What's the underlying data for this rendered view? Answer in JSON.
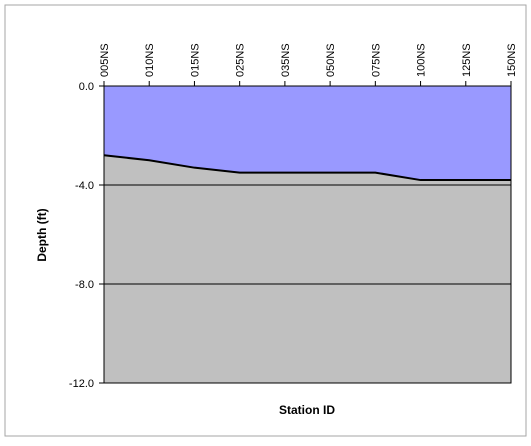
{
  "chart_data": {
    "type": "area",
    "title": "",
    "xlabel": "Station ID",
    "ylabel": "Depth (ft)",
    "categories": [
      "005NS",
      "010NS",
      "015NS",
      "025NS",
      "035NS",
      "050NS",
      "075NS",
      "100NS",
      "125NS",
      "150NS"
    ],
    "x_tick_labels": [
      "005NS",
      "010NS",
      "015NS",
      "025NS",
      "035NS",
      "050NS",
      "075NS",
      "100NS",
      "125NS",
      "150NS"
    ],
    "y_tick_labels": [
      "0.0",
      "-4.0",
      "-8.0",
      "-12.0"
    ],
    "y_ticks": [
      0,
      -4,
      -8,
      -12
    ],
    "ylim": [
      -12,
      0
    ],
    "series": [
      {
        "values": [
          -2.8,
          -3.0,
          -3.3,
          -3.5,
          -3.5,
          -3.5,
          -3.5,
          -3.8,
          -3.8,
          -3.8
        ]
      }
    ],
    "grid": true,
    "x_axis_position": "top",
    "colors": {
      "water": "#9999ff",
      "bottom": "#c0c0c0",
      "line": "#000000",
      "grid": "#000000",
      "border": "#a6a6a6"
    }
  }
}
